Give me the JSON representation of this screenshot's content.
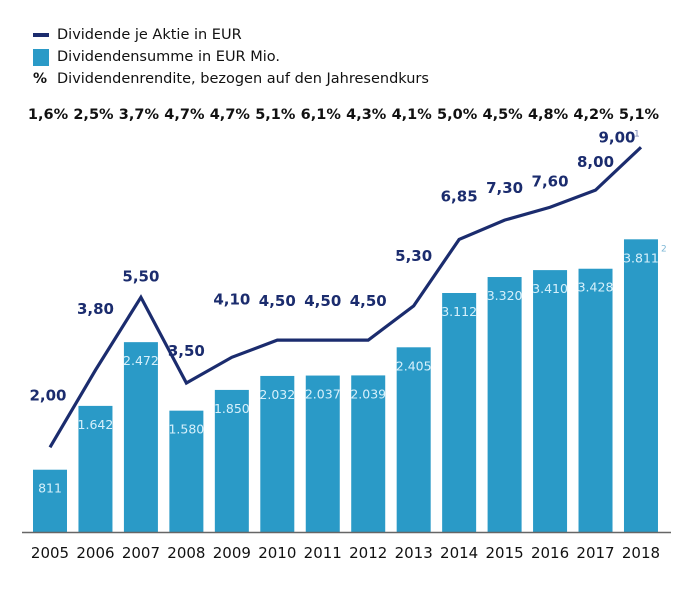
{
  "legend": {
    "items": [
      {
        "symbol": "line",
        "label": "Dividende je Aktie in EUR"
      },
      {
        "symbol": "bar",
        "label": "Dividendensumme in EUR Mio."
      },
      {
        "symbol": "%",
        "label": "Dividendenrendite, bezogen auf den Jahresendkurs"
      }
    ]
  },
  "colors": {
    "line": "#1b2c6e",
    "bar": "#2a9ac7",
    "bar_label": "#d6f0fb",
    "axis": "#666666",
    "text": "#111111"
  },
  "chart_data": {
    "type": "bar",
    "title": "",
    "xlabel": "",
    "ylabel": "",
    "categories": [
      "2005",
      "2006",
      "2007",
      "2008",
      "2009",
      "2010",
      "2011",
      "2012",
      "2013",
      "2014",
      "2015",
      "2016",
      "2017",
      "2018"
    ],
    "series": [
      {
        "name": "Dividendensumme in EUR Mio.",
        "type": "bar",
        "values": [
          811,
          1642,
          2472,
          1580,
          1850,
          2032,
          2037,
          2039,
          2405,
          3112,
          3320,
          3410,
          3428,
          3811
        ],
        "labels": [
          "811",
          "1.642",
          "2.472",
          "1.580",
          "1.850",
          "2.032",
          "2.037",
          "2.039",
          "2.405",
          "3.112",
          "3.320",
          "3.410",
          "3.428",
          "3.811"
        ]
      },
      {
        "name": "Dividende je Aktie in EUR",
        "type": "line",
        "values": [
          2.0,
          3.8,
          5.5,
          3.5,
          4.1,
          4.5,
          4.5,
          4.5,
          5.3,
          6.85,
          7.3,
          7.6,
          8.0,
          9.0
        ],
        "labels": [
          "2,00",
          "3,80",
          "5,50",
          "3,50",
          "4,10",
          "4,50",
          "4,50",
          "4,50",
          "5,30",
          "6,85",
          "7,30",
          "7,60",
          "8,00",
          "9,00"
        ]
      },
      {
        "name": "Dividendenrendite, bezogen auf den Jahresendkurs",
        "type": "text-row",
        "unit": "%",
        "values": [
          1.6,
          2.5,
          3.7,
          4.7,
          4.7,
          5.1,
          6.1,
          4.3,
          4.1,
          5.0,
          4.5,
          4.8,
          4.2,
          5.1
        ],
        "labels": [
          "1,6%",
          "2,5%",
          "3,7%",
          "4,7%",
          "4,7%",
          "5,1%",
          "6,1%",
          "4,3%",
          "4,1%",
          "5,0%",
          "4,5%",
          "4,8%",
          "4,2%",
          "5,1%"
        ]
      }
    ],
    "footnotes": {
      "line_last": "1",
      "bar_last": "2"
    },
    "grid": false,
    "legend_position": "top-left",
    "ylim_bar": [
      0,
      3811
    ],
    "ylim_line": [
      0,
      9.0
    ]
  }
}
